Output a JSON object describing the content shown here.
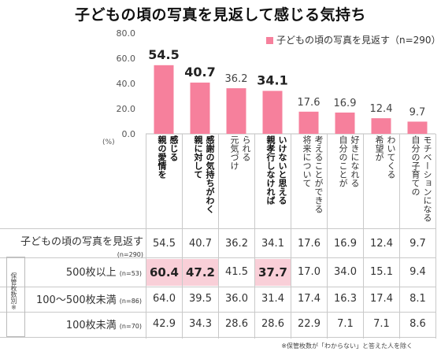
{
  "title": "子どもの頃の写真を見返して感じる気持ち",
  "chart_data": {
    "type": "bar",
    "ylim": [
      0,
      80
    ],
    "yticks": [
      "0.0",
      "20.0",
      "40.0",
      "60.0",
      "80.0"
    ],
    "unit_label": "(%)",
    "bar_color": "#f6809c",
    "series": [
      {
        "name": "子どもの頃の写真を見返す（n=290）",
        "values": [
          54.5,
          40.7,
          36.2,
          34.1,
          17.6,
          16.9,
          12.4,
          9.7
        ]
      }
    ],
    "value_labels": [
      "54.5",
      "40.7",
      "36.2",
      "34.1",
      "17.6",
      "16.9",
      "12.4",
      "9.7"
    ],
    "categories": [
      {
        "lines": [
          "親の愛情を",
          "感じる"
        ]
      },
      {
        "lines": [
          "親に対して",
          "感謝の気持ちがわく"
        ]
      },
      {
        "lines": [
          "元気づけ",
          "られる"
        ]
      },
      {
        "lines": [
          "親孝行しなければ",
          "いけないと思える"
        ]
      },
      {
        "lines": [
          "将来について",
          "考えることができる"
        ]
      },
      {
        "lines": [
          "自分のことが",
          "好きになれる"
        ]
      },
      {
        "lines": [
          "希望が",
          "わいてくる"
        ]
      },
      {
        "lines": [
          "自分の子育ての",
          "モチベーションになる"
        ]
      }
    ]
  },
  "table": {
    "rows": [
      {
        "label": "子どもの頃の写真を見返す",
        "n": "(n=290)",
        "values": [
          "54.5",
          "40.7",
          "36.2",
          "34.1",
          "17.6",
          "16.9",
          "12.4",
          "9.7"
        ]
      },
      {
        "label": "500枚以上",
        "n": "(n=53)",
        "values": [
          "60.4",
          "47.2",
          "41.5",
          "37.7",
          "17.0",
          "34.0",
          "15.1",
          "9.4"
        ]
      },
      {
        "label": "100～500枚未満",
        "n": "(n=86)",
        "values": [
          "64.0",
          "39.5",
          "36.0",
          "31.4",
          "17.4",
          "16.3",
          "17.4",
          "8.1"
        ]
      },
      {
        "label": "100枚未満",
        "n": "(n=70)",
        "values": [
          "42.9",
          "34.3",
          "28.6",
          "28.6",
          "22.9",
          "7.1",
          "7.1",
          "8.6"
        ]
      }
    ],
    "group_label": "保管枚数別※",
    "highlight_color": "#f9cfd8",
    "footnote": "※保管枚数が「わからない」と答えた人を除く"
  }
}
